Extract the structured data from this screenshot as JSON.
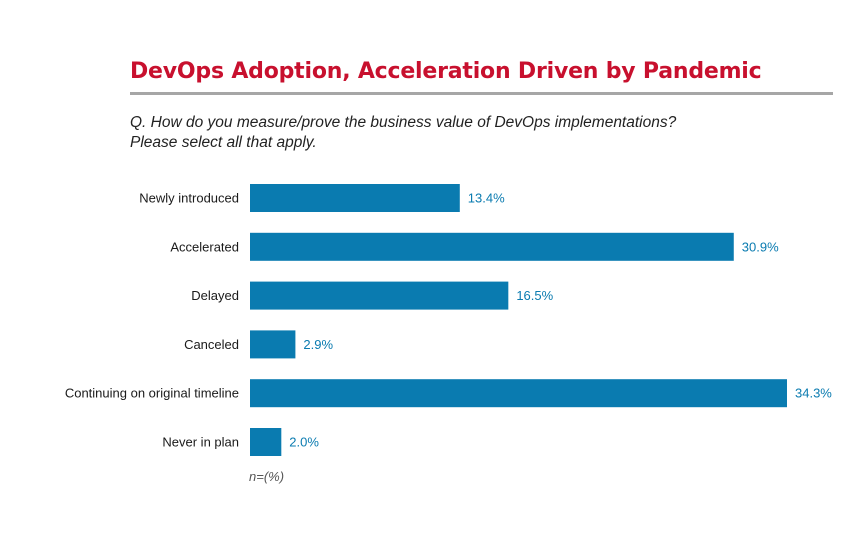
{
  "title": "DevOps Adoption, Acceleration Driven by Pandemic",
  "question": {
    "line1": "Q. How do you measure/prove the business value of DevOps implementations?",
    "line2": "Please select all that apply."
  },
  "note": "n=(%)",
  "colors": {
    "title": "#c8102e",
    "bar": "#0a7bb0",
    "value_label": "#0a7bb0",
    "category_label": "#1a1a1a",
    "rule": "#a6a6a6"
  },
  "chart_data": {
    "type": "bar",
    "orientation": "horizontal",
    "title": "DevOps Adoption, Acceleration Driven by Pandemic",
    "xlabel": "",
    "ylabel": "",
    "categories": [
      "Newly introduced",
      "Accelerated",
      "Delayed",
      "Canceled",
      "Continuing on original timeline",
      "Never in plan"
    ],
    "values": [
      13.4,
      30.9,
      16.5,
      2.9,
      34.3,
      2.0
    ],
    "value_labels": [
      "13.4%",
      "30.9%",
      "16.5%",
      "2.9%",
      "34.3%",
      "2.0%"
    ],
    "xlim": [
      0,
      34.3
    ],
    "grid": false,
    "legend": "none"
  }
}
